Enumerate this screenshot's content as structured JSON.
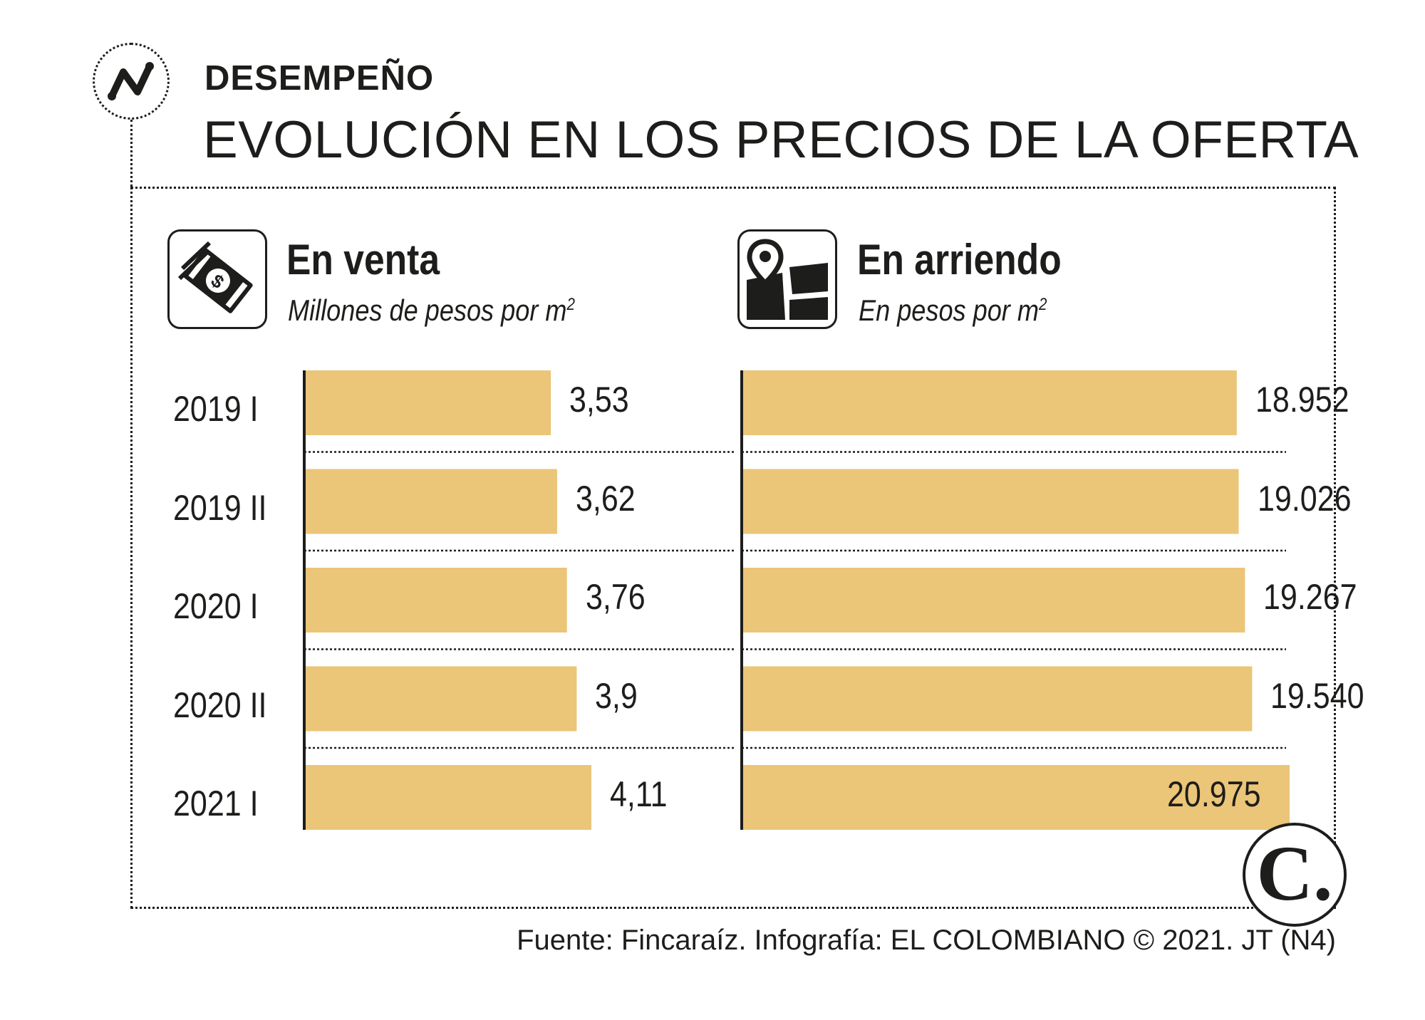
{
  "header": {
    "kicker": "DESEMPEÑO",
    "title": "EVOLUCIÓN EN LOS PRECIOS DE LA OFERTA"
  },
  "categories": [
    "2019 I",
    "2019 II",
    "2020 I",
    "2020 II",
    "2021 I"
  ],
  "colors": {
    "bar": "#ebc578",
    "ink": "#1d1d1b"
  },
  "chart_data": [
    {
      "type": "bar",
      "orientation": "horizontal",
      "title": "En venta",
      "subtitle": "Millones de pesos por m",
      "subtitle_sup": "2",
      "categories": [
        "2019 I",
        "2019 II",
        "2020 I",
        "2020 II",
        "2021 I"
      ],
      "values": [
        3.53,
        3.62,
        3.76,
        3.9,
        4.11
      ],
      "value_labels": [
        "3,53",
        "3,62",
        "3,76",
        "3,9",
        "4,11"
      ],
      "grid": false
    },
    {
      "type": "bar",
      "orientation": "horizontal",
      "title": "En arriendo",
      "subtitle": "En pesos por m",
      "subtitle_sup": "2",
      "categories": [
        "2019 I",
        "2019 II",
        "2020 I",
        "2020 II",
        "2021 I"
      ],
      "values": [
        18952,
        19026,
        19267,
        19540,
        20975
      ],
      "value_labels": [
        "18.952",
        "19.026",
        "19.267",
        "19.540",
        "20.975"
      ],
      "grid": false
    }
  ],
  "brand": {
    "letter": "C."
  },
  "source": "Fuente: Fincaraíz. Infografía: EL COLOMBIANO © 2021. JT (N4)"
}
